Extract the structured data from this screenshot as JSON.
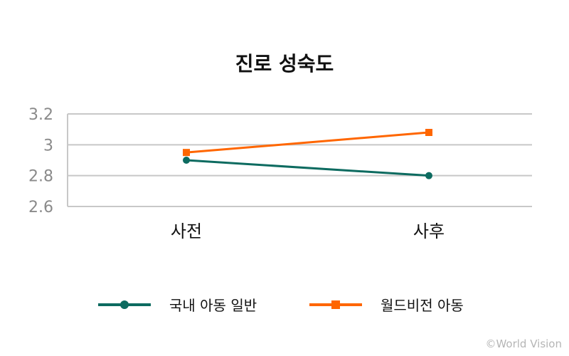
{
  "chart_data": {
    "type": "line",
    "title": "진로 성숙도",
    "categories": [
      "사전",
      "사후"
    ],
    "series": [
      {
        "name": "국내 아동 일반",
        "values": [
          2.9,
          2.8
        ],
        "color": "#0d6b60",
        "marker": "circle"
      },
      {
        "name": "월드비전 아동",
        "values": [
          2.95,
          3.08
        ],
        "color": "#ff6600",
        "marker": "square"
      }
    ],
    "ylim": [
      2.6,
      3.2
    ],
    "yticks": [
      3.2,
      3,
      2.8,
      2.6
    ],
    "ytick_labels": [
      "3.2",
      "3",
      "2.8",
      "2.6"
    ],
    "grid": true,
    "legend": "bottom",
    "xlabel": "",
    "ylabel": ""
  },
  "credit": "©World Vision"
}
